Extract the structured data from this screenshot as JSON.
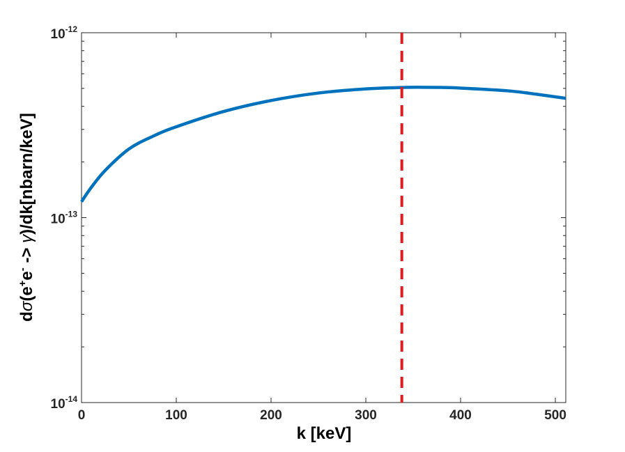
{
  "chart_data": {
    "type": "line",
    "xlabel": "k [keV]",
    "ylabel": "dσ(e⁺e⁻ -> γ)/dk[nbarn/keV]",
    "ylabel_parts": {
      "prefix": "d",
      "sigma": "σ",
      "open": "(e",
      "sup_plus": "+",
      "e2": "e",
      "sup_minus": "-",
      "arrow": " -> ",
      "gamma": "γ",
      "suffix": ")/dk[nbarn/keV]"
    },
    "xlim": [
      0,
      511
    ],
    "ylim": [
      1e-14,
      1e-12
    ],
    "yscale": "log",
    "grid": false,
    "x_ticks": [
      "0",
      "100",
      "200",
      "300",
      "400",
      "500"
    ],
    "x_tick_values": [
      0,
      100,
      200,
      300,
      400,
      500
    ],
    "y_ticks": [
      {
        "base": "10",
        "exp": "-14",
        "value": 1e-14
      },
      {
        "base": "10",
        "exp": "-13",
        "value": 1e-13
      },
      {
        "base": "10",
        "exp": "-12",
        "value": 1e-12
      }
    ],
    "series": [
      {
        "color": "#0072BD",
        "x": [
          0,
          10,
          25,
          50,
          75,
          100,
          150,
          200,
          250,
          300,
          340,
          360,
          380,
          400,
          450,
          480,
          511
        ],
        "y": [
          1.22e-13,
          1.45e-13,
          1.8e-13,
          2.35e-13,
          2.75e-13,
          3.1e-13,
          3.75e-13,
          4.3e-13,
          4.72e-13,
          4.97e-13,
          5.06e-13,
          5.07e-13,
          5.06e-13,
          5.02e-13,
          4.85e-13,
          4.65e-13,
          4.42e-13
        ]
      }
    ],
    "vline": {
      "x": 338,
      "color": "#E41A1C",
      "style": "dashed"
    }
  }
}
